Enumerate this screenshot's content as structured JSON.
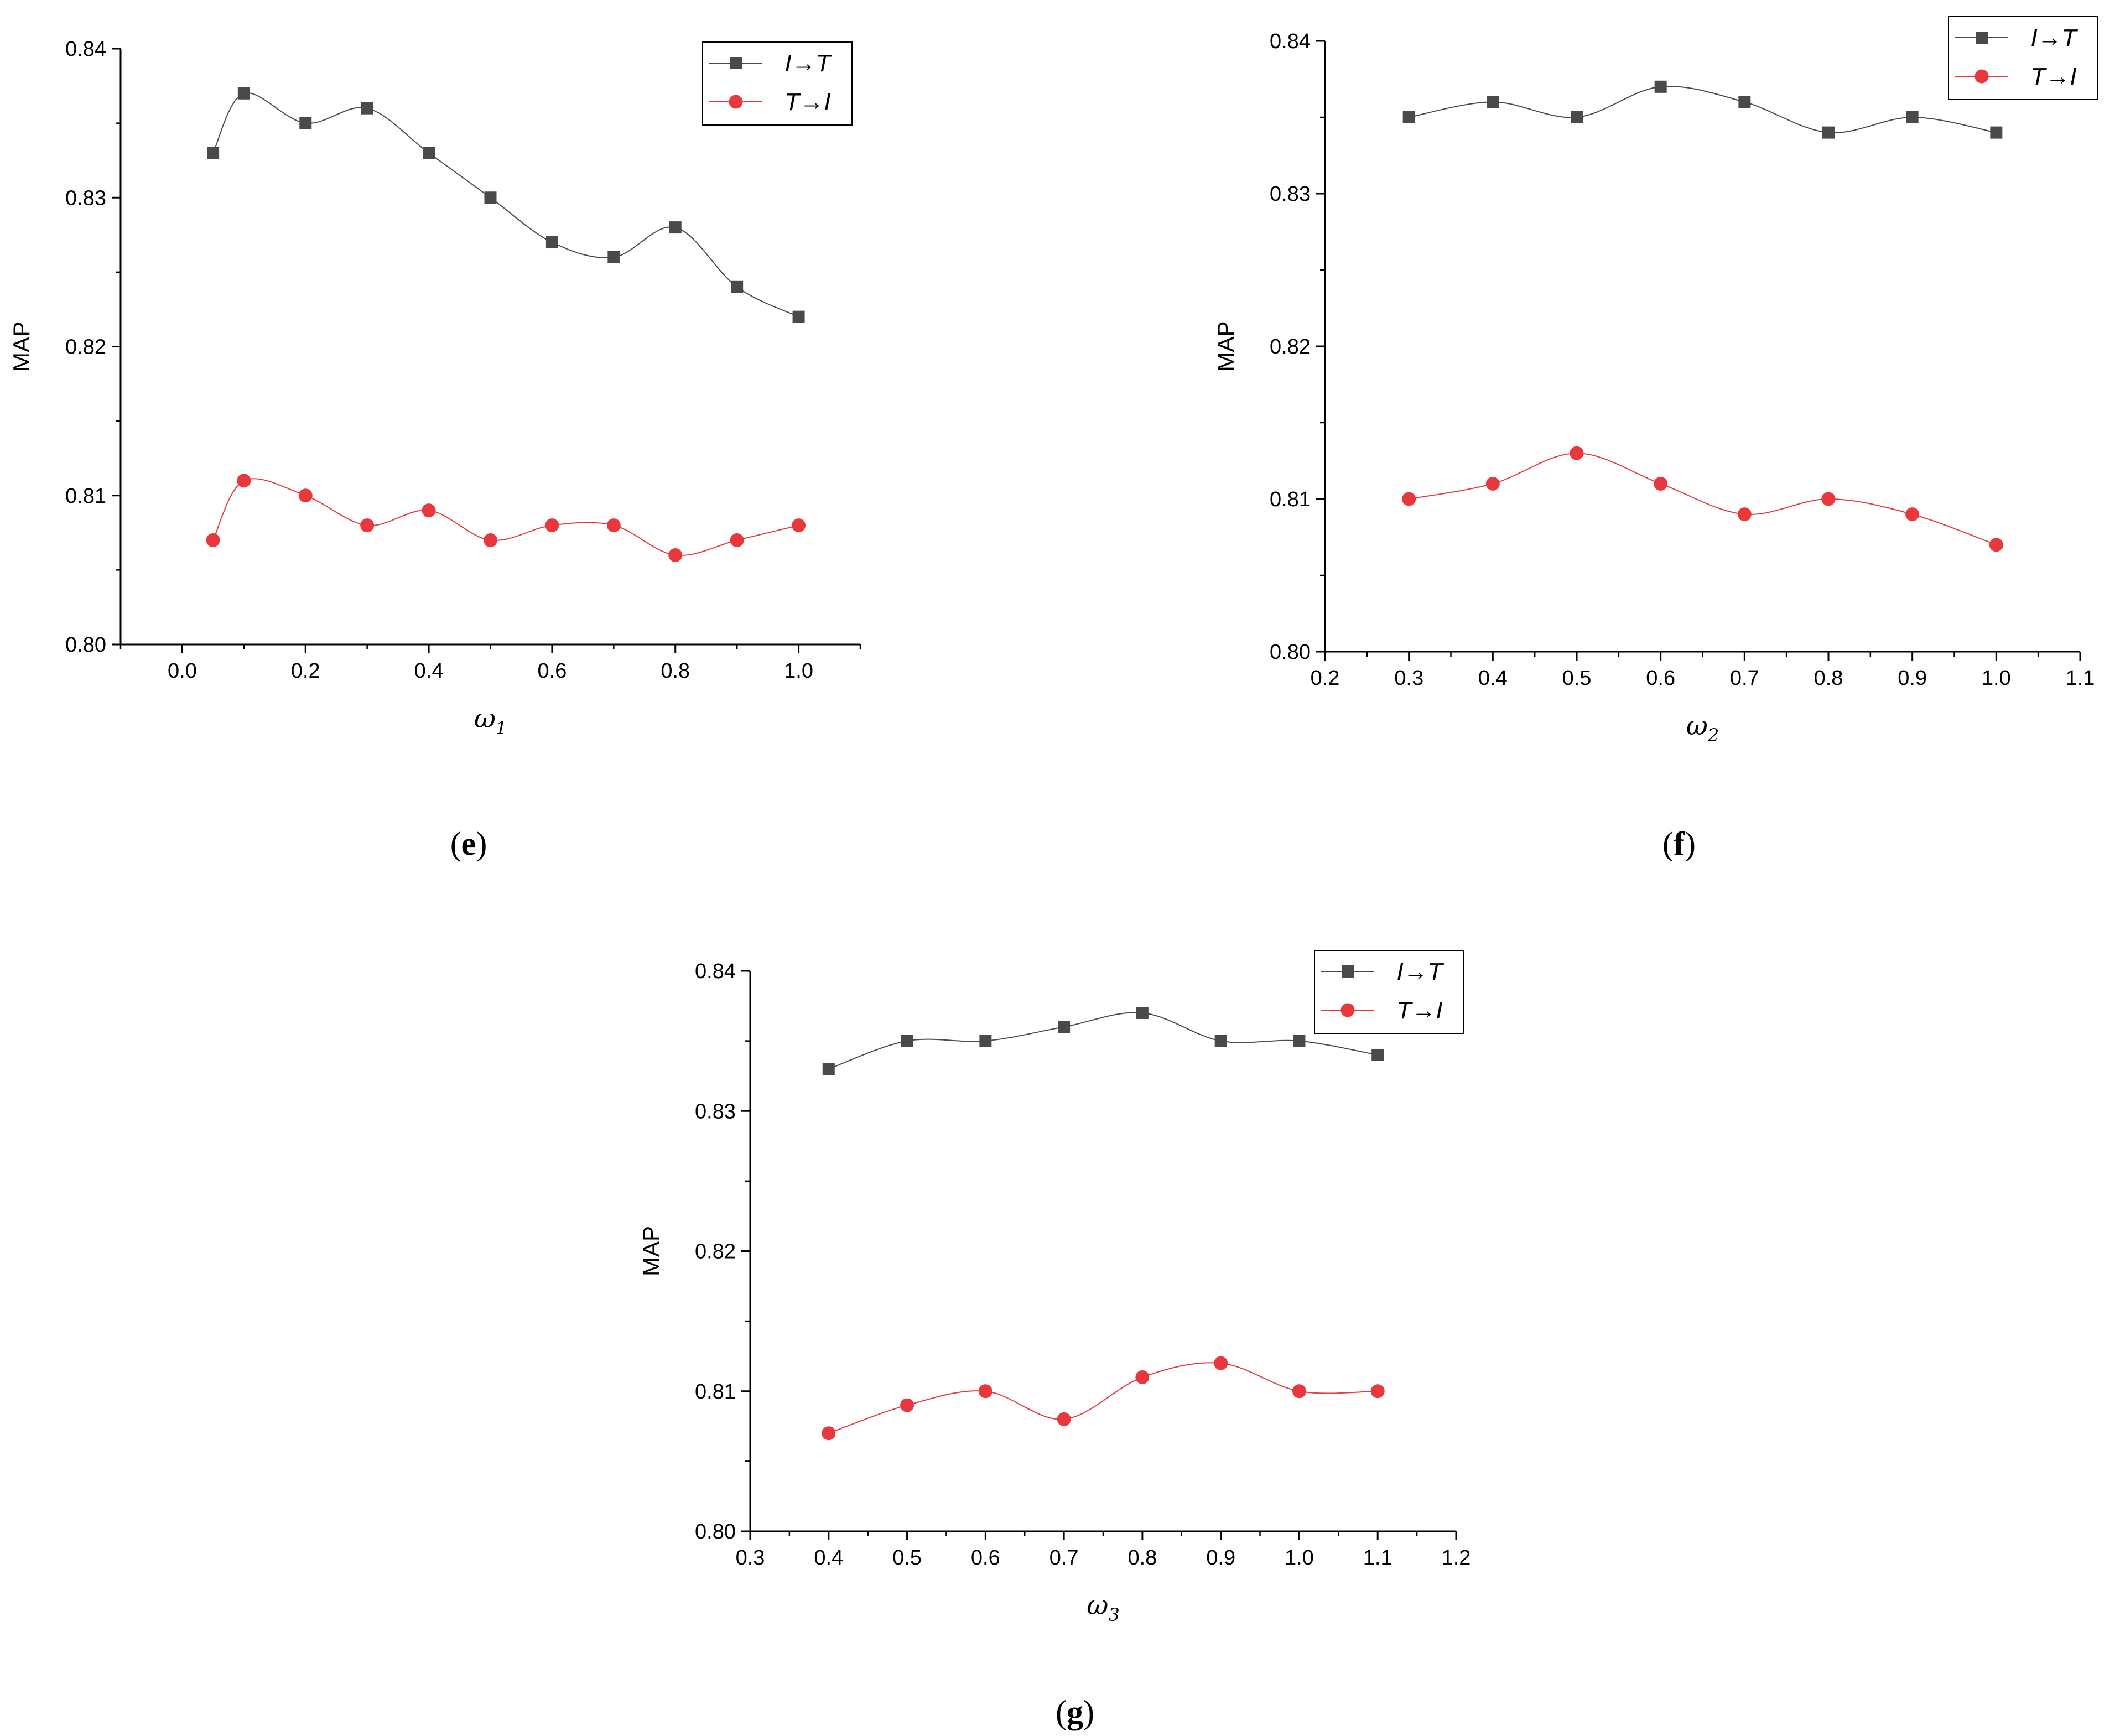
{
  "colors": {
    "series_i_to_t": "#4a4a4a",
    "series_t_to_i": "#e8383d",
    "axis": "#000000"
  },
  "chart_data": [
    {
      "type": "line",
      "caption": "e",
      "ylabel": "MAP",
      "xlabel_symbol": "ω",
      "xlabel_subscript": "1",
      "xlim": [
        -0.1,
        1.1
      ],
      "ylim": [
        0.8,
        0.84
      ],
      "xticks": [
        "0.0",
        "0.2",
        "0.4",
        "0.6",
        "0.8",
        "1.0"
      ],
      "xtick_values": [
        0.0,
        0.2,
        0.4,
        0.6,
        0.8,
        1.0
      ],
      "yticks": [
        "0.80",
        "0.81",
        "0.82",
        "0.83",
        "0.84"
      ],
      "ytick_values": [
        0.8,
        0.81,
        0.82,
        0.83,
        0.84
      ],
      "legend_position": "top-right",
      "x": [
        0.05,
        0.1,
        0.2,
        0.3,
        0.4,
        0.5,
        0.6,
        0.7,
        0.8,
        0.9,
        1.0
      ],
      "series": [
        {
          "name": "I→T",
          "name_left": "I",
          "name_right": "T",
          "marker": "square",
          "values": [
            0.833,
            0.837,
            0.835,
            0.836,
            0.833,
            0.83,
            0.827,
            0.826,
            0.828,
            0.824,
            0.822
          ]
        },
        {
          "name": "T→I",
          "name_left": "T",
          "name_right": "I",
          "marker": "circle",
          "values": [
            0.807,
            0.811,
            0.81,
            0.808,
            0.809,
            0.807,
            0.808,
            0.808,
            0.806,
            0.807,
            0.808
          ]
        }
      ]
    },
    {
      "type": "line",
      "caption": "f",
      "ylabel": "MAP",
      "xlabel_symbol": "ω",
      "xlabel_subscript": "2",
      "xlim": [
        0.2,
        1.1
      ],
      "ylim": [
        0.8,
        0.84
      ],
      "xticks": [
        "0.2",
        "0.3",
        "0.4",
        "0.5",
        "0.6",
        "0.7",
        "0.8",
        "0.9",
        "1.0",
        "1.1"
      ],
      "xtick_values": [
        0.2,
        0.3,
        0.4,
        0.5,
        0.6,
        0.7,
        0.8,
        0.9,
        1.0,
        1.1
      ],
      "yticks": [
        "0.80",
        "0.81",
        "0.82",
        "0.83",
        "0.84"
      ],
      "ytick_values": [
        0.8,
        0.81,
        0.82,
        0.83,
        0.84
      ],
      "legend_position": "top-right",
      "x": [
        0.3,
        0.4,
        0.5,
        0.6,
        0.7,
        0.8,
        0.9,
        1.0
      ],
      "series": [
        {
          "name": "I→T",
          "name_left": "I",
          "name_right": "T",
          "marker": "square",
          "values": [
            0.835,
            0.836,
            0.835,
            0.837,
            0.836,
            0.834,
            0.835,
            0.834
          ]
        },
        {
          "name": "T→I",
          "name_left": "T",
          "name_right": "I",
          "marker": "circle",
          "values": [
            0.81,
            0.811,
            0.813,
            0.811,
            0.809,
            0.81,
            0.809,
            0.807
          ]
        }
      ]
    },
    {
      "type": "line",
      "caption": "g",
      "ylabel": "MAP",
      "xlabel_symbol": "ω",
      "xlabel_subscript": "3",
      "xlim": [
        0.3,
        1.2
      ],
      "ylim": [
        0.8,
        0.84
      ],
      "xticks": [
        "0.3",
        "0.4",
        "0.5",
        "0.6",
        "0.7",
        "0.8",
        "0.9",
        "1.0",
        "1.1",
        "1.2"
      ],
      "xtick_values": [
        0.3,
        0.4,
        0.5,
        0.6,
        0.7,
        0.8,
        0.9,
        1.0,
        1.1,
        1.2
      ],
      "yticks": [
        "0.80",
        "0.81",
        "0.82",
        "0.83",
        "0.84"
      ],
      "ytick_values": [
        0.8,
        0.81,
        0.82,
        0.83,
        0.84
      ],
      "legend_position": "top-right",
      "x": [
        0.4,
        0.5,
        0.6,
        0.7,
        0.8,
        0.9,
        1.0,
        1.1
      ],
      "series": [
        {
          "name": "I→T",
          "name_left": "I",
          "name_right": "T",
          "marker": "square",
          "values": [
            0.833,
            0.835,
            0.835,
            0.836,
            0.837,
            0.835,
            0.835,
            0.834
          ]
        },
        {
          "name": "T→I",
          "name_left": "T",
          "name_right": "I",
          "marker": "circle",
          "values": [
            0.807,
            0.809,
            0.81,
            0.808,
            0.811,
            0.812,
            0.81,
            0.81
          ]
        }
      ]
    }
  ]
}
